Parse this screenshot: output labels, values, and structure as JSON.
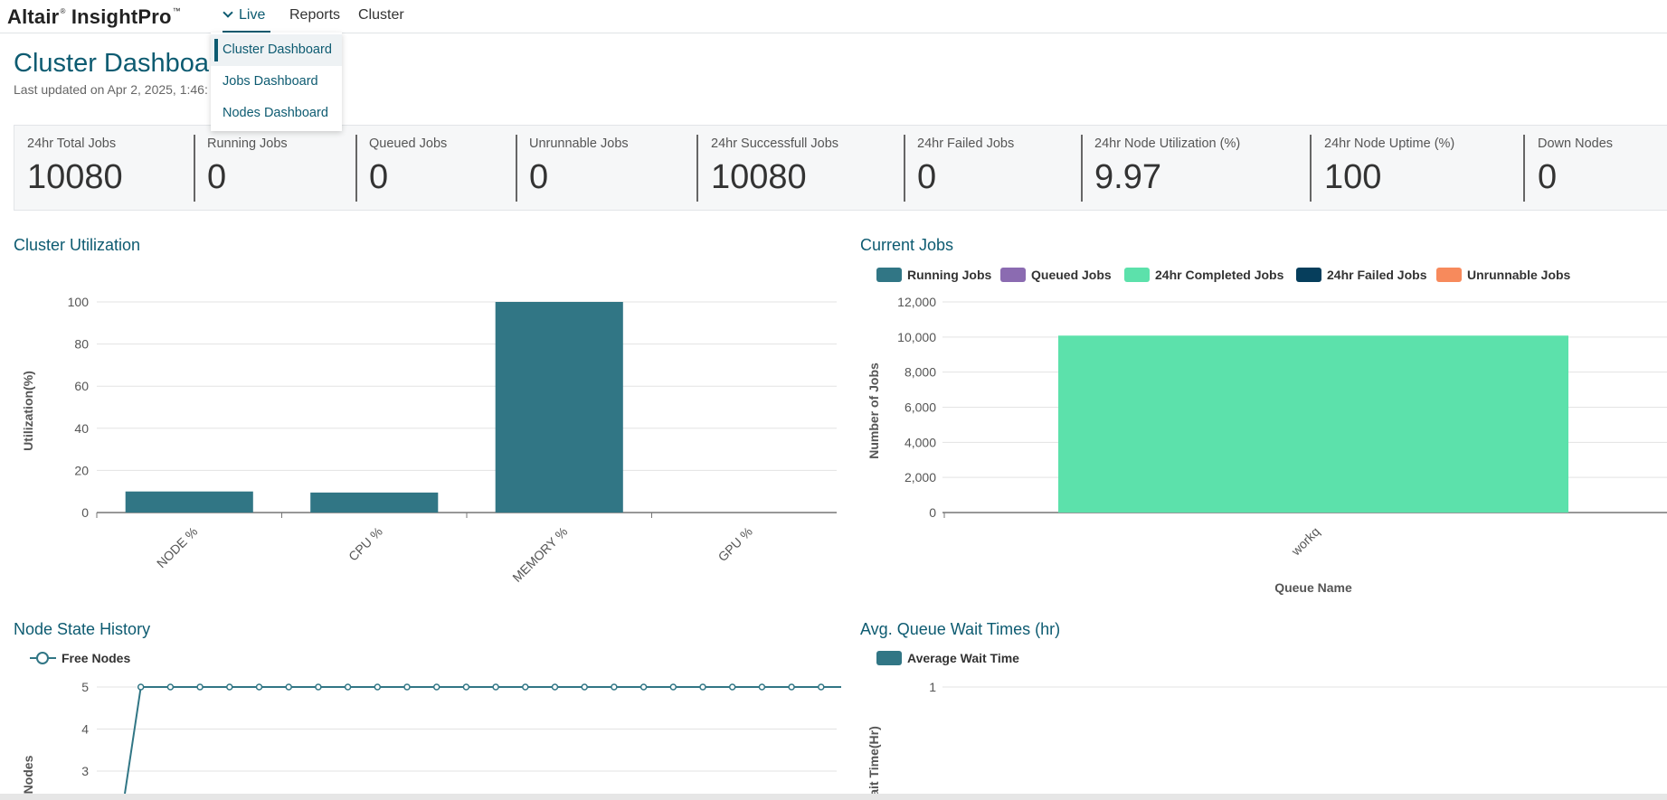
{
  "app": {
    "logo_text": "Altair",
    "logo_reg": "®",
    "logo_product": "InsightPro",
    "logo_tm": "™"
  },
  "nav": {
    "live": "Live",
    "reports": "Reports",
    "cluster": "Cluster"
  },
  "dropdown": {
    "items": [
      "Cluster Dashboard",
      "Jobs Dashboard",
      "Nodes Dashboard"
    ],
    "active": "Cluster Dashboard"
  },
  "header": {
    "title": "Cluster Dashboard",
    "last_updated": "Last updated on Apr 2, 2025, 1:46:"
  },
  "kpis": [
    {
      "label": "24hr Total Jobs",
      "value": "10080"
    },
    {
      "label": "Running Jobs",
      "value": "0"
    },
    {
      "label": "Queued Jobs",
      "value": "0"
    },
    {
      "label": "Unrunnable Jobs",
      "value": "0"
    },
    {
      "label": "24hr Successfull Jobs",
      "value": "10080"
    },
    {
      "label": "24hr Failed Jobs",
      "value": "0"
    },
    {
      "label": "24hr Node Utilization (%)",
      "value": "9.97"
    },
    {
      "label": "24hr Node Uptime (%)",
      "value": "100"
    },
    {
      "label": "Down Nodes",
      "value": "0"
    }
  ],
  "sections": {
    "cluster_utilization": "Cluster Utilization",
    "current_jobs": "Current Jobs",
    "node_state_history": "Node State History",
    "avg_queue_wait": "Avg. Queue Wait Times (hr)"
  },
  "colors": {
    "accent": "#0d5b71",
    "bar_teal": "#317685",
    "queued": "#8b6bb1",
    "completed": "#5ce1ab",
    "failed": "#063e5c",
    "unrunnable": "#f78a5c"
  },
  "chart_data": [
    {
      "type": "bar",
      "title": "Cluster Utilization",
      "categories": [
        "NODE %",
        "CPU %",
        "MEMORY %",
        "GPU %"
      ],
      "values": [
        10,
        9.5,
        100,
        0
      ],
      "ylabel": "Utilization(%)",
      "xlabel": "",
      "ylim": [
        0,
        100
      ],
      "yticks": [
        "0",
        "20",
        "40",
        "60",
        "80",
        "100"
      ],
      "grid": true
    },
    {
      "type": "bar",
      "title": "Current Jobs",
      "categories": [
        "workq"
      ],
      "series": [
        {
          "name": "Running Jobs",
          "values": [
            0
          ]
        },
        {
          "name": "Queued Jobs",
          "values": [
            0
          ]
        },
        {
          "name": "24hr Completed Jobs",
          "values": [
            10080
          ]
        },
        {
          "name": "24hr Failed Jobs",
          "values": [
            0
          ]
        },
        {
          "name": "Unrunnable Jobs",
          "values": [
            0
          ]
        }
      ],
      "ylabel": "Number of Jobs",
      "xlabel": "Queue Name",
      "ylim": [
        0,
        12000
      ],
      "yticks": [
        "0",
        "2,000",
        "4,000",
        "6,000",
        "8,000",
        "10,000",
        "12,000"
      ],
      "legend": "top-left",
      "grid": true
    },
    {
      "type": "line",
      "title": "Node State History",
      "series": [
        {
          "name": "Free Nodes",
          "values": [
            2.5,
            5,
            5,
            5,
            5,
            5,
            5,
            5,
            5,
            5,
            5,
            5,
            5,
            5,
            5,
            5,
            5,
            5,
            5,
            5,
            5,
            5,
            5,
            5,
            5,
            5
          ]
        }
      ],
      "ylabel": "Nodes",
      "yticks_visible": [
        "3",
        "4",
        "5"
      ],
      "legend": "top-left",
      "grid": true
    },
    {
      "type": "bar",
      "title": "Avg. Queue Wait Times (hr)",
      "series": [
        {
          "name": "Average Wait Time",
          "values": []
        }
      ],
      "ylabel": "ait Time(Hr)",
      "yticks_visible": [
        "1"
      ],
      "legend": "top-left",
      "grid": true
    }
  ]
}
